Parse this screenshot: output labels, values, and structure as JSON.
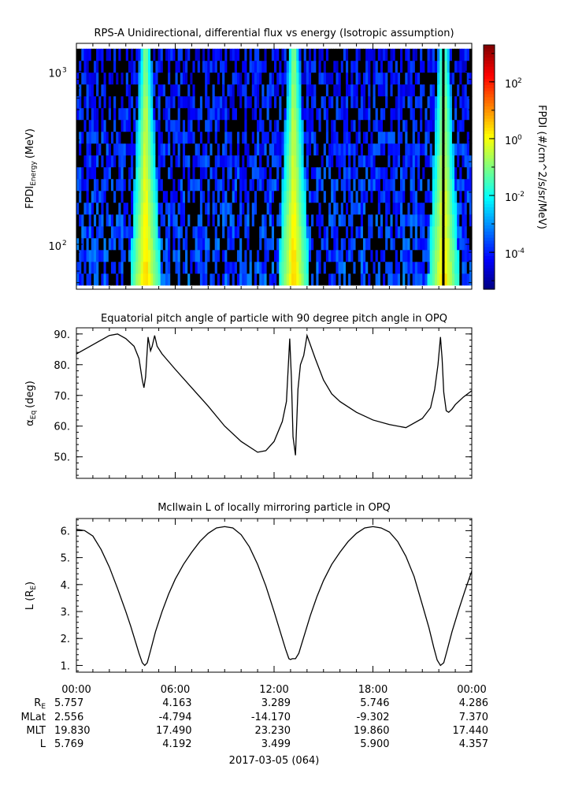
{
  "chart_data": [
    {
      "type": "heatmap",
      "title": "RPS-A Unidirectional, differential flux vs energy (Isotropic assumption)",
      "ylabel": "FPDI",
      "ylabel_sub": "Energy",
      "ylabel_unit": "(MeV)",
      "yscale": "log",
      "ylim": [
        55,
        1450
      ],
      "yticks": [
        {
          "value": 100,
          "base": "10",
          "exp": "2"
        },
        {
          "value": 1000,
          "base": "10",
          "exp": "3"
        }
      ],
      "data_ylim": [
        58,
        1350
      ],
      "energy_channels": 20,
      "colorbar": {
        "label": "FPDI (#/cm^2/s/sr/MeV)",
        "scale": "log",
        "range_exp": [
          -5.3,
          3.3
        ],
        "ticks": [
          {
            "exp": -4,
            "base": "10",
            "sup": "-4"
          },
          {
            "exp": -2,
            "base": "10",
            "sup": "-2"
          },
          {
            "exp": 0,
            "base": "10",
            "sup": "0"
          },
          {
            "exp": 2,
            "base": "10",
            "sup": "2"
          }
        ]
      },
      "enhancement_peaks_hours": [
        4.2,
        13.2,
        22.3
      ]
    },
    {
      "type": "line",
      "title": "Equatorial pitch angle of particle with 90 degree pitch angle in OPQ",
      "ylabel": "α",
      "ylabel_sub": "Eq",
      "ylabel_unit": "(deg)",
      "ylim": [
        43,
        92
      ],
      "yticks": [
        "50.",
        "60.",
        "70.",
        "80.",
        "90."
      ],
      "x_hours": [
        0,
        1,
        2,
        2.5,
        3,
        3.5,
        3.8,
        4.0,
        4.1,
        4.2,
        4.35,
        4.5,
        4.6,
        4.75,
        4.9,
        5.2,
        5.6,
        6.0,
        7.0,
        8.0,
        9.0,
        10.0,
        11.0,
        11.5,
        12.0,
        12.5,
        12.75,
        12.95,
        13.05,
        13.15,
        13.3,
        13.45,
        13.6,
        13.8,
        14.0,
        14.5,
        15.0,
        15.5,
        16.0,
        17.0,
        18.0,
        19.0,
        20.0,
        21.0,
        21.5,
        21.75,
        21.95,
        22.1,
        22.2,
        22.3,
        22.45,
        22.6,
        22.8,
        23.0,
        23.5,
        24.0
      ],
      "y": [
        83.5,
        86.5,
        89.5,
        90.0,
        88.5,
        86.0,
        82.0,
        75.0,
        72.5,
        76.0,
        89.0,
        84.5,
        86.0,
        89.5,
        86.0,
        83.5,
        81.0,
        78.5,
        72.5,
        66.5,
        60.0,
        55.0,
        51.5,
        52.0,
        55.0,
        61.5,
        68.0,
        88.5,
        76.0,
        56.5,
        50.5,
        72.0,
        80.0,
        83.0,
        89.5,
        82.0,
        75.0,
        70.5,
        68.0,
        64.5,
        62.0,
        60.5,
        59.5,
        62.5,
        66.0,
        72.0,
        80.0,
        89.0,
        82.0,
        71.0,
        65.0,
        64.5,
        65.5,
        67.0,
        69.5,
        71.5
      ]
    },
    {
      "type": "line",
      "title": "McIlwain L of locally mirroring particle in OPQ",
      "ylabel": "L (R",
      "ylabel_sub": "E",
      "ylabel_unit": ")",
      "ylim": [
        0.75,
        6.45
      ],
      "yticks": [
        "1.",
        "2.",
        "3.",
        "4.",
        "5.",
        "6."
      ],
      "x_hours": [
        0,
        0.5,
        1,
        1.5,
        2,
        2.5,
        3,
        3.3,
        3.6,
        3.8,
        4.0,
        4.15,
        4.3,
        4.5,
        4.8,
        5.2,
        5.6,
        6.0,
        6.5,
        7.0,
        7.5,
        8.0,
        8.5,
        9.0,
        9.5,
        10.0,
        10.5,
        11.0,
        11.5,
        12.0,
        12.4,
        12.7,
        12.9,
        13.0,
        13.1,
        13.3,
        13.5,
        13.8,
        14.2,
        14.6,
        15.0,
        15.5,
        16.0,
        16.5,
        17.0,
        17.5,
        18.0,
        18.5,
        19.0,
        19.5,
        20.0,
        20.5,
        21.0,
        21.4,
        21.7,
        21.9,
        22.1,
        22.3,
        22.5,
        22.8,
        23.2,
        23.6,
        24.0
      ],
      "y": [
        6.05,
        6.0,
        5.8,
        5.3,
        4.65,
        3.85,
        3.0,
        2.45,
        1.85,
        1.45,
        1.1,
        1.0,
        1.1,
        1.55,
        2.25,
        3.0,
        3.65,
        4.2,
        4.75,
        5.2,
        5.6,
        5.9,
        6.1,
        6.15,
        6.1,
        5.85,
        5.4,
        4.75,
        3.95,
        3.0,
        2.2,
        1.6,
        1.25,
        1.22,
        1.25,
        1.25,
        1.45,
        2.05,
        2.85,
        3.55,
        4.15,
        4.75,
        5.2,
        5.6,
        5.9,
        6.1,
        6.15,
        6.1,
        5.95,
        5.6,
        5.05,
        4.3,
        3.25,
        2.4,
        1.65,
        1.2,
        1.0,
        1.1,
        1.55,
        2.25,
        3.05,
        3.8,
        4.5
      ]
    }
  ],
  "time_axis": {
    "start_hour": 0,
    "end_hour": 24,
    "major_hours": [
      0,
      6,
      12,
      18,
      24
    ],
    "row_labels": [
      "R",
      "MLat",
      "MLT",
      "L"
    ],
    "row_label_sub": "E",
    "columns": [
      {
        "time": "00:00",
        "RE": "5.757",
        "MLat": "2.556",
        "MLT": "19.830",
        "L": "5.769"
      },
      {
        "time": "06:00",
        "RE": "4.163",
        "MLat": "-4.794",
        "MLT": "17.490",
        "L": "4.192"
      },
      {
        "time": "12:00",
        "RE": "3.289",
        "MLat": "-14.170",
        "MLT": "23.230",
        "L": "3.499"
      },
      {
        "time": "18:00",
        "RE": "5.746",
        "MLat": "-9.302",
        "MLT": "19.860",
        "L": "5.900"
      },
      {
        "time": "00:00",
        "RE": "4.286",
        "MLat": "7.370",
        "MLT": "17.440",
        "L": "4.357"
      }
    ],
    "date_label": "2017-03-05 (064)"
  }
}
